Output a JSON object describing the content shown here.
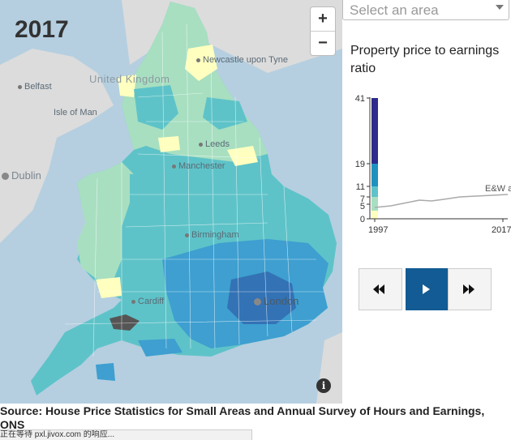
{
  "map": {
    "year": "2017",
    "zoom_in": "+",
    "zoom_out": "−",
    "info_icon": "i",
    "country_label": "United Kingdom",
    "places": [
      "Newcastle upon Tyne",
      "Belfast",
      "Isle of Man",
      "Leeds",
      "Dublin",
      "Manchester",
      "Birmingham",
      "Cardiff",
      "London"
    ],
    "colors": {
      "sea": "#b5cfe0",
      "land_grey": "#dcdcdc",
      "low": "#ffffbf",
      "light_green": "#a8dfc1",
      "teal": "#5ec3c8",
      "mid_blue": "#3e9fd0",
      "dark_blue": "#3372b5",
      "no_data": "#555555"
    }
  },
  "area_select": {
    "placeholder": "Select an area"
  },
  "legend": {
    "title": "Property price to earnings ratio",
    "ticks": [
      "41",
      "19",
      "11",
      "7",
      "5",
      "0"
    ],
    "x_start": "1997",
    "x_end": "2017",
    "line_label": "E&W a",
    "bands": [
      {
        "from": 0,
        "to": 5,
        "color": "#ffffbf"
      },
      {
        "from": 5,
        "to": 7,
        "color": "#a8dfc1"
      },
      {
        "from": 7,
        "to": 11,
        "color": "#5ec3c8"
      },
      {
        "from": 11,
        "to": 19,
        "color": "#1d91c0"
      },
      {
        "from": 19,
        "to": 41,
        "color": "#2c2a8c"
      }
    ]
  },
  "controls": {
    "rewind_icon": "rewind-icon",
    "play_icon": "play-icon",
    "forward_icon": "fast-forward-icon"
  },
  "source": "Source: House Price Statistics for Small Areas and Annual Survey of Hours and Earnings, ONS",
  "status_bar": "正在等待 pxl.jivox.com 的响应..."
}
